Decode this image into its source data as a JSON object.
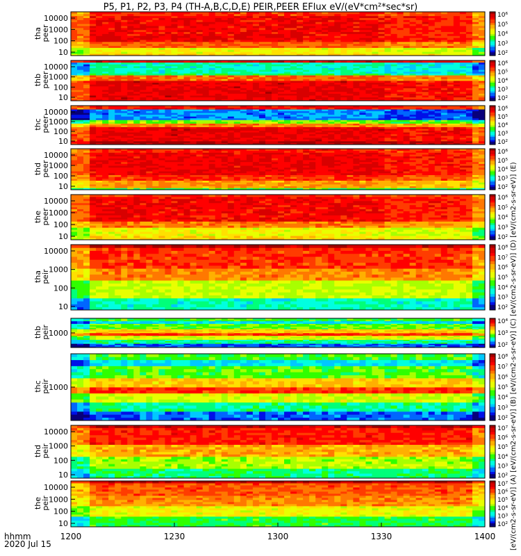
{
  "chart_data": {
    "type": "heatmap",
    "title": "P5, P1, P2, P3, P4 (TH-A,B,C,D,E) PEIR,PEER EFlux eV/(eV*cm²*sec*sr)",
    "xaxis": {
      "range": [
        1200,
        1400
      ],
      "ticks": [
        "1200",
        "1230",
        "1300",
        "1330",
        "1400"
      ],
      "label_line1": "hhmm",
      "label_line2": "2020 Jul 15"
    },
    "colorbar_label": "[eV/(cm2-s-sr-eV)] (A) [eV/(cm2-s-sr-eV)] (B) [eV/(cm2-s-sr-eV)] (C) [eV/(cm2-s-sr-eV)] (D) [eV/(cm2-s-sr-eV)] (E)",
    "colorbar_ticks": [
      "10²",
      "10³",
      "10⁴",
      "10⁵",
      "10⁶",
      "10⁷",
      "10⁸"
    ],
    "panels": [
      {
        "name": "tha peer",
        "label_line1": "tha",
        "label_line2": "peer",
        "yticks": [
          "10",
          "100",
          "1000",
          "10000"
        ],
        "profile": "peer_a"
      },
      {
        "name": "thb peer",
        "label_line1": "thb",
        "label_line2": "peer",
        "yticks": [
          "10",
          "100",
          "1000",
          "10000"
        ],
        "profile": "peer_b"
      },
      {
        "name": "thc peer",
        "label_line1": "thc",
        "label_line2": "peer",
        "yticks": [
          "10",
          "100",
          "1000",
          "10000"
        ],
        "profile": "peer_c"
      },
      {
        "name": "thd peer",
        "label_line1": "thd",
        "label_line2": "peer",
        "yticks": [
          "10",
          "100",
          "1000",
          "10000"
        ],
        "profile": "peer_d"
      },
      {
        "name": "the peer",
        "label_line1": "the",
        "label_line2": "peer",
        "yticks": [
          "10",
          "100",
          "1000",
          "10000"
        ],
        "profile": "peer_e"
      },
      {
        "name": "tha peir",
        "label_line1": "tha",
        "label_line2": "peir",
        "yticks": [
          "10",
          "100",
          "1000",
          "10000"
        ],
        "profile": "peir_a"
      },
      {
        "name": "thb peir",
        "label_line1": "thb",
        "label_line2": "peir",
        "yticks": [
          "1000"
        ],
        "profile": "peir_bc"
      },
      {
        "name": "thc peir",
        "label_line1": "thc",
        "label_line2": "peir",
        "yticks": [
          "1000"
        ],
        "profile": "peir_bc"
      },
      {
        "name": "thd peir",
        "label_line1": "thd",
        "label_line2": "peir",
        "yticks": [
          "10",
          "100",
          "1000",
          "10000"
        ],
        "profile": "peir_d"
      },
      {
        "name": "the peir",
        "label_line1": "the",
        "label_line2": "peir",
        "yticks": [
          "10",
          "100",
          "1000",
          "10000"
        ],
        "profile": "peir_e"
      }
    ]
  }
}
